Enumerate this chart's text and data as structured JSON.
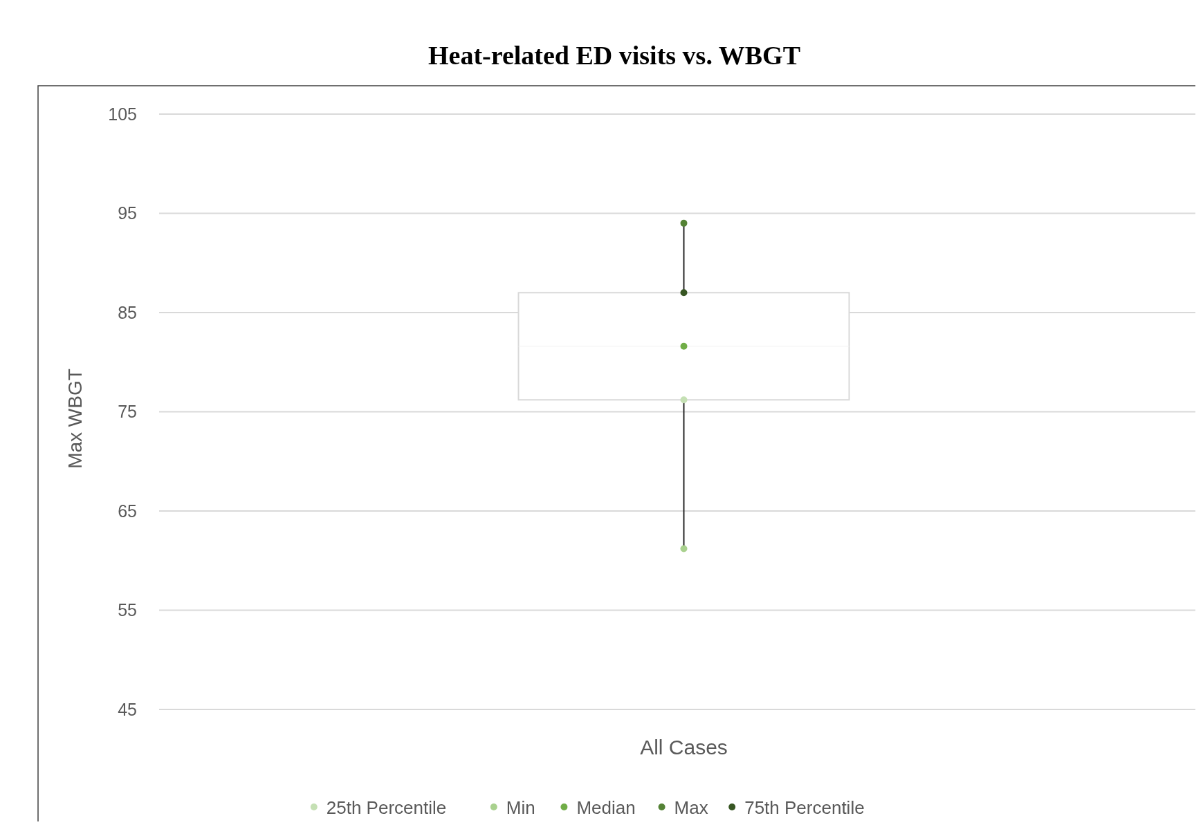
{
  "chart_data": {
    "type": "box",
    "title": "Heat-related ED visits vs. WBGT",
    "ylabel": "Max WBGT",
    "categories": [
      "All Cases"
    ],
    "boxes": [
      {
        "low": 61.2,
        "q1": 76.2,
        "median": 81.6,
        "q3": 87,
        "high": 94
      }
    ],
    "series": [
      {
        "type": "scatter",
        "name": "25th Percentile",
        "color": "#c5e0b4",
        "x": [
          "All Cases"
        ],
        "values": [
          76.2
        ]
      },
      {
        "type": "scatter",
        "name": "Min",
        "color": "#a9d18e",
        "x": [
          "All Cases"
        ],
        "values": [
          61.2
        ]
      },
      {
        "type": "scatter",
        "name": "Median",
        "color": "#70ad47",
        "x": [
          "All Cases"
        ],
        "values": [
          81.6
        ]
      },
      {
        "type": "scatter",
        "name": "Max",
        "color": "#548235",
        "x": [
          "All Cases"
        ],
        "values": [
          94
        ]
      },
      {
        "type": "scatter",
        "name": "75th Percentile",
        "color": "#375623",
        "x": [
          "All Cases"
        ],
        "values": [
          87
        ]
      }
    ],
    "ylim": [
      45,
      105
    ],
    "yticks": [
      45,
      55,
      65,
      75,
      85,
      95,
      105
    ],
    "grid": "y",
    "legend": "bottom",
    "marker": "circle"
  }
}
